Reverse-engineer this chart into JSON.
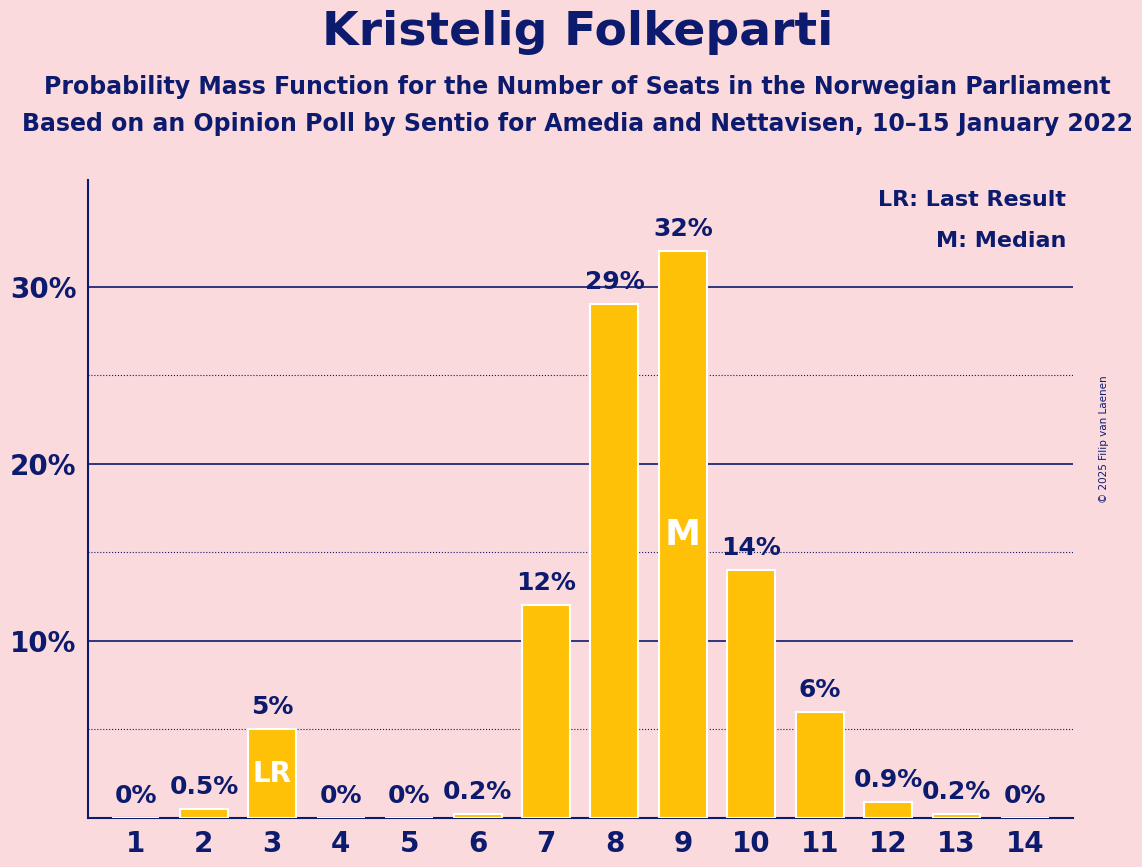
{
  "title": "Kristelig Folkeparti",
  "subtitle1": "Probability Mass Function for the Number of Seats in the Norwegian Parliament",
  "subtitle2": "Based on an Opinion Poll by Sentio for Amedia and Nettavisen, 10–15 January 2022",
  "copyright": "© 2025 Filip van Laenen",
  "categories": [
    1,
    2,
    3,
    4,
    5,
    6,
    7,
    8,
    9,
    10,
    11,
    12,
    13,
    14
  ],
  "values": [
    0,
    0.5,
    5,
    0,
    0,
    0.2,
    12,
    29,
    32,
    14,
    6,
    0.9,
    0.2,
    0
  ],
  "bar_color": "#FFC107",
  "bar_edge_color": "#FFFFFF",
  "background_color": "#FADADD",
  "text_color": "#0D1B6E",
  "title_fontsize": 34,
  "subtitle_fontsize": 17,
  "axis_label_fontsize": 20,
  "bar_label_fontsize": 18,
  "solid_grid": [
    0,
    10,
    20,
    30
  ],
  "dotted_grid": [
    5,
    15,
    25
  ],
  "lr_bar_index": 2,
  "median_bar_index": 8,
  "legend_lr": "LR: Last Result",
  "legend_m": "M: Median",
  "xlim": [
    0.3,
    14.7
  ],
  "ylim": [
    0,
    36
  ]
}
